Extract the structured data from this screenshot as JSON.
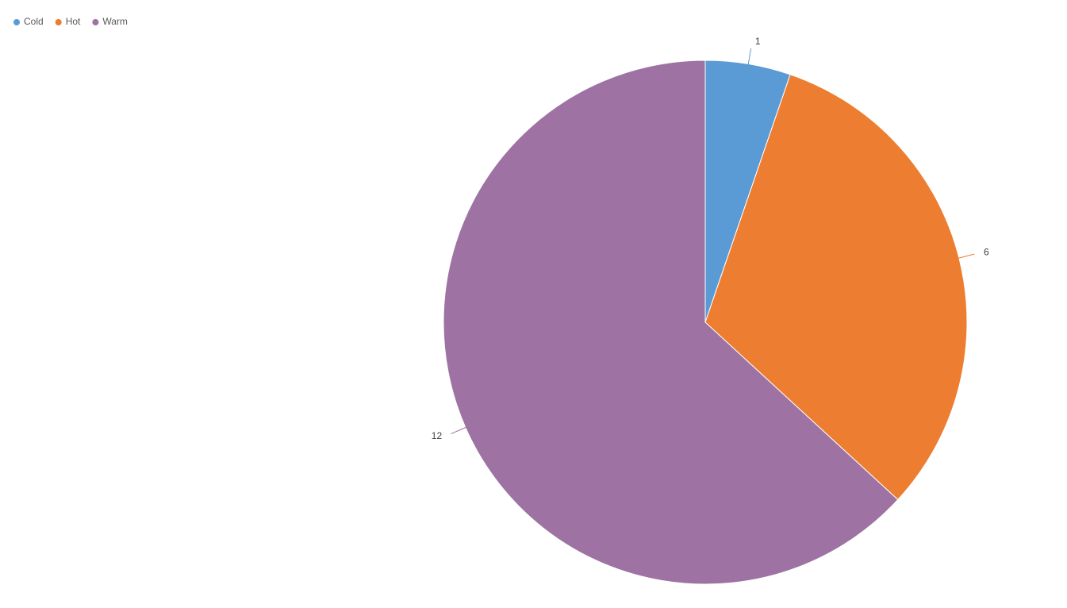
{
  "chart_data": {
    "type": "pie",
    "categories": [
      "Cold",
      "Hot",
      "Warm"
    ],
    "values": [
      1,
      6,
      12
    ],
    "colors": [
      "#5b9bd5",
      "#ed7d31",
      "#9e72a2"
    ],
    "legend": "top-left"
  }
}
